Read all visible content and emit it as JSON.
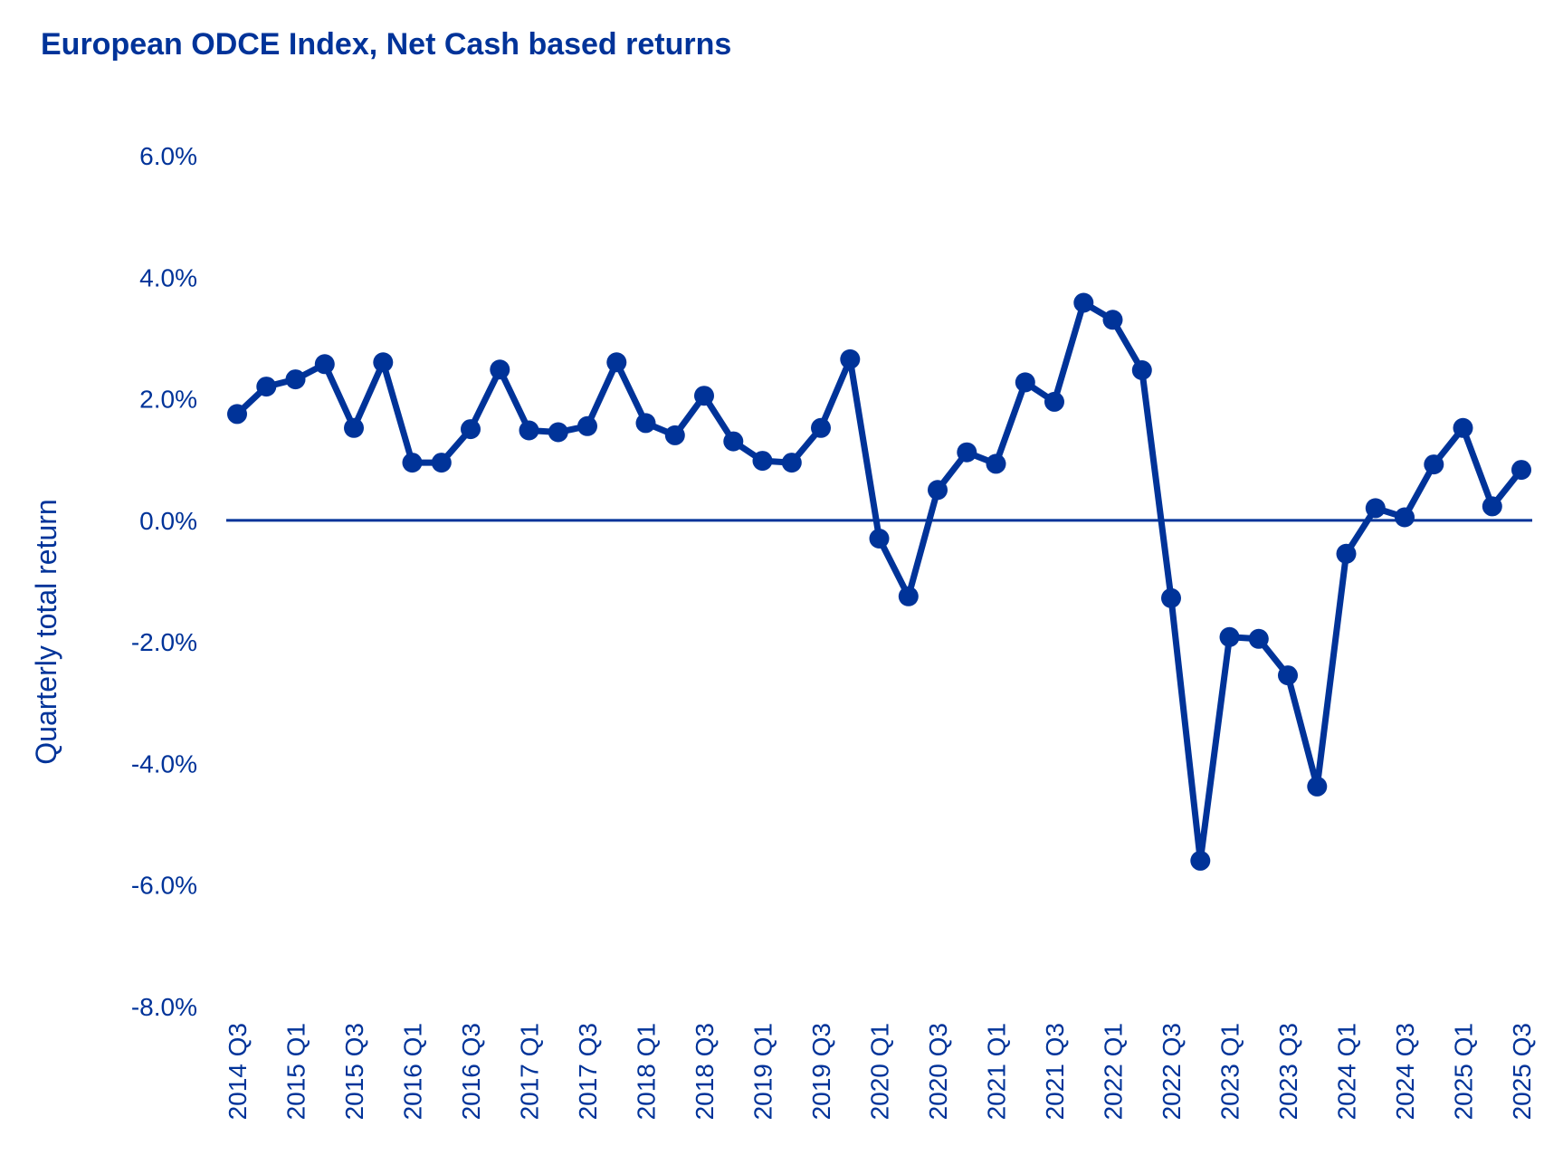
{
  "colors": {
    "series": "#003399",
    "text": "#003399",
    "zero_line": "#003399"
  },
  "chart_data": {
    "type": "line",
    "title": "European ODCE Index, Net Cash based returns",
    "xlabel": "",
    "ylabel": "Quarterly total return",
    "ylim": [
      -8.0,
      6.0
    ],
    "y_ticks": [
      "6.0%",
      "4.0%",
      "2.0%",
      "0.0%",
      "-2.0%",
      "-4.0%",
      "-6.0%",
      "-8.0%"
    ],
    "y_tick_values": [
      6,
      4,
      2,
      0,
      -2,
      -4,
      -6,
      -8
    ],
    "x_tick_labels": [
      "2014 Q3",
      "2015 Q1",
      "2015 Q3",
      "2016 Q1",
      "2016 Q3",
      "2017 Q1",
      "2017 Q3",
      "2018 Q1",
      "2018 Q3",
      "2019 Q1",
      "2019 Q3",
      "2020 Q1",
      "2020 Q3",
      "2021 Q1",
      "2021 Q3",
      "2022 Q1",
      "2022 Q3",
      "2023 Q1",
      "2023 Q3",
      "2024 Q1",
      "2024 Q3",
      "2025 Q1",
      "2025 Q3"
    ],
    "categories": [
      "2014 Q3",
      "2014 Q4",
      "2015 Q1",
      "2015 Q2",
      "2015 Q3",
      "2015 Q4",
      "2016 Q1",
      "2016 Q2",
      "2016 Q3",
      "2016 Q4",
      "2017 Q1",
      "2017 Q2",
      "2017 Q3",
      "2017 Q4",
      "2018 Q1",
      "2018 Q2",
      "2018 Q3",
      "2018 Q4",
      "2019 Q1",
      "2019 Q2",
      "2019 Q3",
      "2019 Q4",
      "2020 Q1",
      "2020 Q2",
      "2020 Q3",
      "2020 Q4",
      "2021 Q1",
      "2021 Q2",
      "2021 Q3",
      "2021 Q4",
      "2022 Q1",
      "2022 Q2",
      "2022 Q3",
      "2022 Q4",
      "2023 Q1",
      "2023 Q2",
      "2023 Q3",
      "2023 Q4",
      "2024 Q1",
      "2024 Q2",
      "2024 Q3",
      "2024 Q4",
      "2025 Q1",
      "2025 Q2",
      "2025 Q3"
    ],
    "series": [
      {
        "name": "European ODCE Index, Net Cash based returns",
        "values": [
          1.75,
          2.2,
          2.32,
          2.57,
          1.52,
          2.6,
          0.95,
          0.95,
          1.5,
          2.48,
          1.48,
          1.45,
          1.55,
          2.6,
          1.6,
          1.4,
          2.05,
          1.3,
          0.98,
          0.95,
          1.52,
          2.65,
          -0.3,
          -1.25,
          0.5,
          1.12,
          0.93,
          2.27,
          1.95,
          3.58,
          3.3,
          2.47,
          -1.28,
          -5.6,
          -1.92,
          -1.95,
          -2.55,
          -4.38,
          -0.55,
          0.2,
          0.05,
          0.92,
          1.52,
          0.23,
          0.83
        ]
      }
    ],
    "grid": false,
    "legend": "none"
  }
}
